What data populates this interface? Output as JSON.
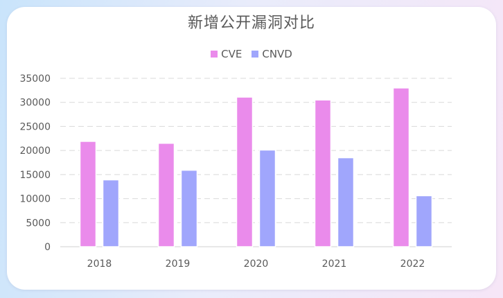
{
  "colors": {
    "cve": "#ea8beb",
    "cnvd": "#a0a6fc",
    "grid": "#d9d9d9",
    "axis": "#d9d9d9"
  },
  "chart_data": {
    "type": "bar",
    "title": "新增公开漏洞对比",
    "categories": [
      "2018",
      "2019",
      "2020",
      "2021",
      "2022"
    ],
    "series": [
      {
        "name": "CVE",
        "values": [
          21900,
          21500,
          31100,
          30500,
          33000
        ]
      },
      {
        "name": "CNVD",
        "values": [
          13900,
          15900,
          20100,
          18500,
          10600
        ]
      }
    ],
    "ylim": [
      0,
      35000
    ],
    "yticks": [
      "0",
      "5000",
      "10000",
      "15000",
      "20000",
      "25000",
      "30000",
      "35000"
    ],
    "legend": "top-center",
    "grid": true
  }
}
